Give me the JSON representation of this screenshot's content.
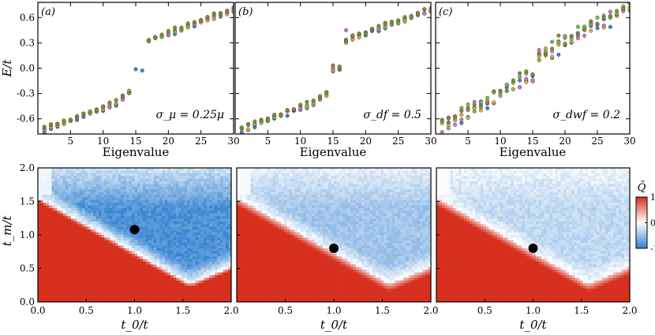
{
  "chart_data": [
    {
      "type": "scatter",
      "panel": "(a)",
      "annotation": "σ_μ = 0.25μ",
      "xlabel": "Eigenvalue",
      "ylabel": "E/t",
      "xlim": [
        0,
        30
      ],
      "ylim": [
        -0.78,
        0.78
      ],
      "xticks": [
        "5",
        "10",
        "15",
        "20",
        "25",
        "30"
      ],
      "yticks": [
        "-0.6",
        "-0.3",
        "0.0",
        "0.3",
        "0.6"
      ],
      "series_colors": [
        "#3a86c8",
        "#e6a93a",
        "#d86bd8",
        "#6cc24a",
        "#8a8a2a"
      ],
      "band_gap_states": [
        0.0,
        0.0
      ]
    },
    {
      "type": "scatter",
      "panel": "(b)",
      "annotation": "σ_df = 0.5",
      "xlabel": "Eigenvalue",
      "xlim": [
        0,
        30
      ],
      "ylim": [
        -0.78,
        0.78
      ],
      "xticks": [
        "5",
        "10",
        "15",
        "20",
        "25",
        "30"
      ],
      "series_colors": [
        "#3a86c8",
        "#e6a93a",
        "#d86bd8",
        "#6cc24a",
        "#8a8a2a"
      ]
    },
    {
      "type": "scatter",
      "panel": "(c)",
      "annotation": "σ_dwf = 0.2",
      "xlabel": "Eigenvalue",
      "xlim": [
        0,
        30
      ],
      "ylim": [
        -0.78,
        0.78
      ],
      "xticks": [
        "5",
        "10",
        "15",
        "20",
        "25",
        "30"
      ],
      "series_colors": [
        "#3a86c8",
        "#e6a93a",
        "#d86bd8",
        "#6cc24a",
        "#8a8a2a"
      ]
    },
    {
      "type": "heatmap",
      "xlabel": "t_0/t",
      "ylabel": "t_m/t",
      "xlim": [
        0.0,
        2.0
      ],
      "ylim": [
        0.0,
        2.0
      ],
      "xticks": [
        "0.0",
        "0.5",
        "1.0",
        "1.5",
        "2.0"
      ],
      "yticks": [
        "0.0",
        "0.5",
        "1.0",
        "1.5",
        "2.0"
      ],
      "marker": [
        1.0,
        1.08
      ]
    },
    {
      "type": "heatmap",
      "xlabel": "t_0/t",
      "xlim": [
        0.0,
        2.0
      ],
      "ylim": [
        0.0,
        2.0
      ],
      "xticks": [
        "0.5",
        "1.0",
        "1.5",
        "2.0"
      ],
      "marker": [
        1.0,
        0.8
      ]
    },
    {
      "type": "heatmap",
      "xlabel": "t_0/t",
      "xlim": [
        0.0,
        2.0
      ],
      "ylim": [
        0.0,
        2.0
      ],
      "xticks": [
        "0.5",
        "1.0",
        "1.5",
        "2.0"
      ],
      "marker": [
        1.0,
        0.8
      ]
    }
  ],
  "colorbar": {
    "label": "Q̄",
    "ticks": [
      "1",
      "0",
      "-1"
    ],
    "colors": [
      "#d7301f",
      "#ffffff",
      "#2f7fd0"
    ]
  }
}
